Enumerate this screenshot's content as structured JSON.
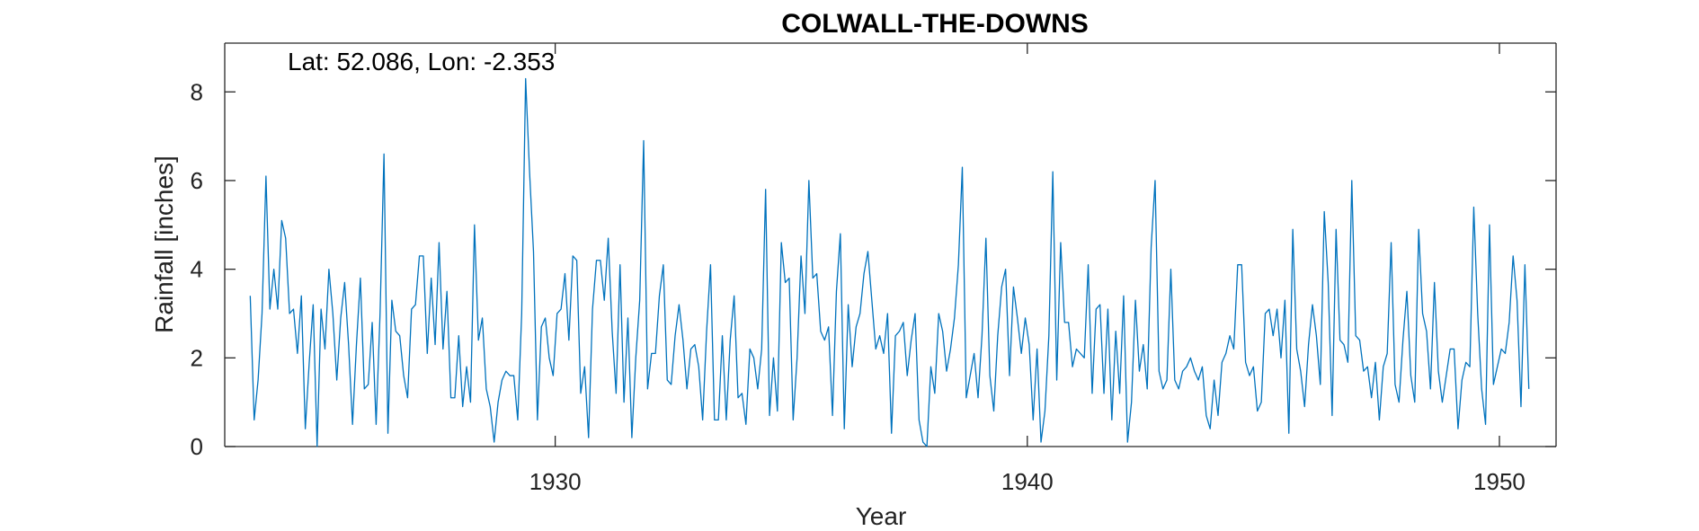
{
  "chart_data": {
    "type": "line",
    "title": "COLWALL-THE-DOWNS",
    "xlabel": "Year",
    "ylabel": "Rainfall [inches]",
    "annotation": "Lat: 52.086, Lon: -2.353",
    "xlim": [
      1923.0,
      1951.2
    ],
    "ylim": [
      0,
      9.1
    ],
    "xticks": [
      1930,
      1940,
      1950
    ],
    "yticks": [
      0,
      2,
      4,
      6,
      8
    ],
    "grid": false,
    "line_color": "#0072BD",
    "series": [
      {
        "x_start": 1923.54,
        "x_step": 0.0833333,
        "values": [
          3.4,
          0.6,
          1.5,
          3.0,
          6.1,
          3.1,
          4.0,
          3.1,
          5.1,
          4.7,
          3.0,
          3.1,
          2.1,
          3.4,
          0.4,
          1.9,
          3.2,
          0.0,
          3.1,
          2.2,
          4.0,
          3.0,
          1.5,
          2.9,
          3.7,
          2.3,
          0.5,
          2.3,
          3.8,
          1.3,
          1.4,
          2.8,
          0.5,
          3.0,
          6.6,
          0.3,
          3.3,
          2.6,
          2.5,
          1.6,
          1.1,
          3.1,
          3.2,
          4.3,
          4.3,
          2.1,
          3.8,
          2.3,
          4.6,
          2.2,
          3.5,
          1.1,
          1.1,
          2.5,
          0.9,
          1.8,
          1.0,
          5.0,
          2.4,
          2.9,
          1.3,
          0.9,
          0.1,
          1.0,
          1.5,
          1.7,
          1.6,
          1.6,
          0.6,
          3.0,
          8.3,
          6.2,
          4.4,
          0.6,
          2.7,
          2.9,
          2.0,
          1.6,
          3.0,
          3.1,
          3.9,
          2.4,
          4.3,
          4.2,
          1.2,
          1.8,
          0.2,
          3.1,
          4.2,
          4.2,
          3.3,
          4.7,
          2.6,
          1.2,
          4.1,
          1.0,
          2.9,
          0.2,
          2.0,
          3.3,
          6.9,
          1.3,
          2.1,
          2.1,
          3.4,
          4.1,
          1.5,
          1.4,
          2.5,
          3.2,
          2.4,
          1.3,
          2.2,
          2.3,
          1.8,
          0.6,
          2.6,
          4.1,
          0.6,
          0.6,
          2.5,
          0.6,
          2.4,
          3.4,
          1.1,
          1.2,
          0.5,
          2.2,
          2.0,
          1.3,
          2.2,
          5.8,
          0.7,
          2.0,
          0.8,
          4.6,
          3.7,
          3.8,
          0.6,
          2.0,
          4.3,
          3.0,
          6.0,
          3.8,
          3.9,
          2.6,
          2.4,
          2.7,
          0.7,
          3.5,
          4.8,
          0.4,
          3.2,
          1.8,
          2.7,
          3.0,
          3.9,
          4.4,
          3.3,
          2.2,
          2.5,
          2.1,
          3.0,
          0.3,
          2.5,
          2.6,
          2.8,
          1.6,
          2.4,
          3.0,
          0.6,
          0.1,
          0.0,
          1.8,
          1.2,
          3.0,
          2.6,
          1.7,
          2.2,
          2.9,
          4.1,
          6.3,
          1.1,
          1.6,
          2.1,
          1.1,
          2.5,
          4.7,
          1.6,
          0.8,
          2.5,
          3.6,
          4.0,
          1.6,
          3.6,
          2.9,
          2.1,
          2.9,
          2.3,
          0.6,
          2.2,
          0.1,
          0.8,
          2.5,
          6.2,
          1.5,
          4.6,
          2.8,
          2.8,
          1.8,
          2.2,
          2.1,
          2.0,
          4.1,
          1.2,
          3.1,
          3.2,
          1.2,
          3.1,
          0.6,
          2.6,
          1.2,
          3.4,
          0.1,
          1.0,
          3.3,
          1.7,
          2.3,
          1.3,
          4.5,
          6.0,
          1.7,
          1.3,
          1.5,
          4.0,
          1.5,
          1.3,
          1.7,
          1.8,
          2.0,
          1.7,
          1.5,
          1.8,
          0.7,
          0.4,
          1.5,
          0.7,
          1.9,
          2.1,
          2.5,
          2.2,
          4.1,
          4.1,
          1.9,
          1.6,
          1.8,
          0.8,
          1.0,
          3.0,
          3.1,
          2.5,
          3.1,
          2.0,
          3.3,
          0.3,
          4.9,
          2.2,
          1.7,
          0.9,
          2.3,
          3.2,
          2.5,
          1.4,
          5.3,
          3.7,
          0.7,
          4.9,
          2.4,
          2.3,
          1.9,
          6.0,
          2.5,
          2.4,
          1.7,
          1.8,
          1.1,
          1.9,
          0.6,
          1.8,
          2.1,
          4.6,
          1.4,
          1.0,
          2.4,
          3.5,
          1.6,
          1.0,
          4.9,
          3.0,
          2.6,
          1.3,
          3.7,
          1.7,
          1.0,
          1.6,
          2.2,
          2.2,
          0.4,
          1.5,
          1.9,
          1.8,
          5.4,
          3.0,
          1.3,
          0.5,
          5.0,
          1.4,
          1.8,
          2.2,
          2.1,
          2.8,
          4.3,
          3.3,
          0.9,
          4.1,
          1.3
        ]
      }
    ]
  }
}
